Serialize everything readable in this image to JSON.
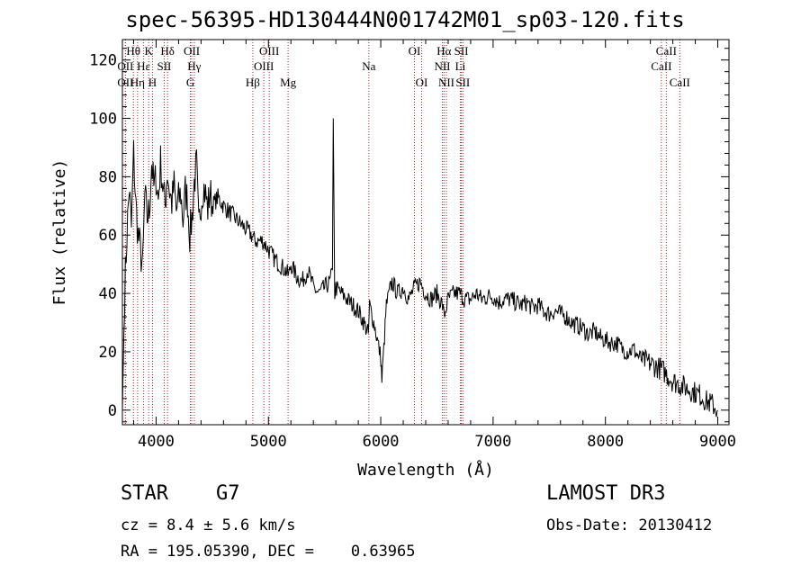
{
  "title": "spec-56395-HD130444N001742M01_sp03-120.fits",
  "info": {
    "object_class": "STAR    G7",
    "survey": "LAMOST DR3",
    "cz": "cz = 8.4 ± 5.6 km/s",
    "obs_date": "Obs-Date: 20130412",
    "radec": "RA = 195.05390, DEC =    0.63965"
  },
  "chart_data": {
    "type": "line",
    "title": "spec-56395-HD130444N001742M01_sp03-120.fits",
    "xlabel": "Wavelength (Å)",
    "ylabel": "Flux (relative)",
    "xlim": [
      3700,
      9100
    ],
    "ylim": [
      -5,
      127
    ],
    "xticks": [
      4000,
      5000,
      6000,
      7000,
      8000,
      9000
    ],
    "yticks": [
      0,
      20,
      40,
      60,
      80,
      100,
      120
    ],
    "series": [
      {
        "name": "flux",
        "x": [
          3700,
          3720,
          3740,
          3760,
          3780,
          3800,
          3820,
          3840,
          3860,
          3880,
          3900,
          3920,
          3940,
          3960,
          3980,
          4000,
          4020,
          4040,
          4060,
          4080,
          4100,
          4120,
          4140,
          4160,
          4180,
          4200,
          4220,
          4240,
          4260,
          4280,
          4300,
          4320,
          4340,
          4360,
          4380,
          4400,
          4420,
          4440,
          4460,
          4480,
          4500,
          4550,
          4600,
          4650,
          4700,
          4750,
          4800,
          4850,
          4880,
          4900,
          4950,
          5000,
          5050,
          5100,
          5150,
          5180,
          5200,
          5250,
          5300,
          5350,
          5400,
          5450,
          5500,
          5550,
          5570,
          5577,
          5590,
          5600,
          5650,
          5700,
          5750,
          5800,
          5850,
          5890,
          5900,
          5950,
          6000,
          6010,
          6050,
          6100,
          6150,
          6200,
          6250,
          6300,
          6350,
          6400,
          6450,
          6500,
          6550,
          6563,
          6600,
          6650,
          6700,
          6750,
          6800,
          6850,
          6900,
          6950,
          7000,
          7050,
          7100,
          7150,
          7200,
          7250,
          7300,
          7350,
          7400,
          7450,
          7500,
          7550,
          7600,
          7650,
          7700,
          7750,
          7800,
          7850,
          7900,
          7950,
          8000,
          8050,
          8100,
          8150,
          8200,
          8250,
          8300,
          8350,
          8400,
          8450,
          8500,
          8550,
          8600,
          8650,
          8700,
          8750,
          8800,
          8850,
          8900,
          8950,
          9000
        ],
        "values": [
          0,
          40,
          60,
          76,
          62,
          88,
          70,
          60,
          55,
          48,
          74,
          66,
          68,
          85,
          76,
          80,
          72,
          85,
          77,
          70,
          82,
          75,
          71,
          77,
          68,
          72,
          74,
          65,
          75,
          72,
          60,
          66,
          78,
          84,
          62,
          72,
          77,
          74,
          69,
          75,
          70,
          73,
          70,
          68,
          66,
          64,
          62,
          60,
          58,
          58,
          58,
          55,
          52,
          50,
          48,
          46,
          50,
          46,
          44,
          48,
          42,
          40,
          42,
          44,
          48,
          100,
          40,
          42,
          40,
          38,
          36,
          34,
          30,
          26,
          36,
          28,
          18,
          10,
          36,
          44,
          40,
          42,
          38,
          42,
          44,
          40,
          38,
          40,
          36,
          32,
          38,
          40,
          40,
          38,
          38,
          40,
          38,
          39,
          39,
          37,
          38,
          38,
          37,
          36,
          37,
          35,
          36,
          34,
          33,
          34,
          33,
          32,
          30,
          29,
          28,
          26,
          27,
          25,
          24,
          23,
          23,
          21,
          20,
          21,
          18,
          17,
          16,
          15,
          14,
          12,
          10,
          9,
          8,
          7,
          6,
          5,
          3,
          2,
          0
        ]
      }
    ],
    "spectral_lines": [
      {
        "name": "Hθ",
        "wavelength": 3798,
        "row": 1
      },
      {
        "name": "OII",
        "wavelength": 3727,
        "row": 2
      },
      {
        "name": "OII",
        "wavelength": 3727,
        "row": 3
      },
      {
        "name": "Hη",
        "wavelength": 3835,
        "row": 3
      },
      {
        "name": "Hε",
        "wavelength": 3889,
        "row": 2
      },
      {
        "name": "K",
        "wavelength": 3934,
        "row": 1
      },
      {
        "name": "H",
        "wavelength": 3968,
        "row": 3
      },
      {
        "name": "SII",
        "wavelength": 4072,
        "row": 2
      },
      {
        "name": "Hδ",
        "wavelength": 4102,
        "row": 1
      },
      {
        "name": "OII",
        "wavelength": 4317,
        "row": 1
      },
      {
        "name": "Hγ",
        "wavelength": 4340,
        "row": 2
      },
      {
        "name": "G",
        "wavelength": 4305,
        "row": 3
      },
      {
        "name": "Hβ",
        "wavelength": 4861,
        "row": 3
      },
      {
        "name": "OIII",
        "wavelength": 4959,
        "row": 2
      },
      {
        "name": "OIII",
        "wavelength": 5007,
        "row": 1
      },
      {
        "name": "Mg",
        "wavelength": 5175,
        "row": 3
      },
      {
        "name": "Na",
        "wavelength": 5894,
        "row": 2
      },
      {
        "name": "OI",
        "wavelength": 6300,
        "row": 1
      },
      {
        "name": "OI",
        "wavelength": 6364,
        "row": 3
      },
      {
        "name": "Hα",
        "wavelength": 6563,
        "row": 1
      },
      {
        "name": "NII",
        "wavelength": 6548,
        "row": 2
      },
      {
        "name": "NII",
        "wavelength": 6584,
        "row": 3
      },
      {
        "name": "SII",
        "wavelength": 6717,
        "row": 1
      },
      {
        "name": "Li",
        "wavelength": 6708,
        "row": 2
      },
      {
        "name": "SII",
        "wavelength": 6731,
        "row": 3
      },
      {
        "name": "CaII",
        "wavelength": 8498,
        "row": 2
      },
      {
        "name": "CaII",
        "wavelength": 8542,
        "row": 1
      },
      {
        "name": "CaII",
        "wavelength": 8662,
        "row": 3
      }
    ]
  }
}
